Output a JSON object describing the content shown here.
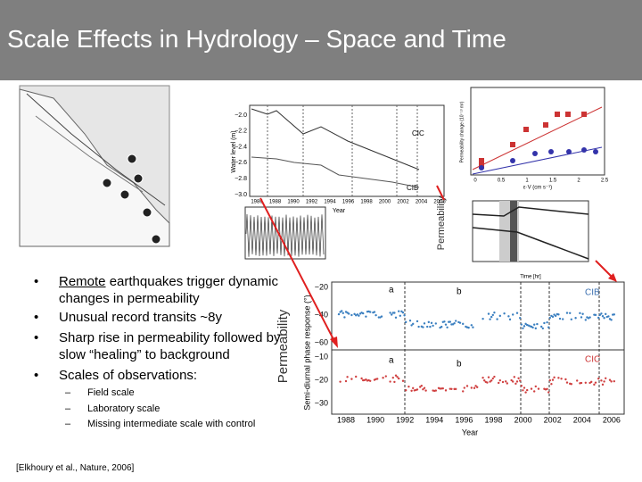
{
  "header": {
    "title": "Scale Effects in Hydrology – Space and Time"
  },
  "bullets": [
    {
      "lead": "Remote",
      "text": " earthquakes trigger dynamic changes in permeability"
    },
    {
      "text": "Unusual record transits ~8y"
    },
    {
      "text": "Sharp rise in permeability followed by slow “healing” to background"
    },
    {
      "text": "Scales of observations:",
      "subitems": [
        "Field scale",
        "Laboratory scale",
        "Missing intermediate scale with control"
      ]
    }
  ],
  "citation": "[Elkhoury et al., Nature, 2006]",
  "figure_labels": {
    "permeability_left": "Permeability",
    "permeability_top": "Permeability"
  },
  "water_level_plot": {
    "ylabel": "Water level (m)",
    "xlabel": "Year",
    "yticks": [
      "−2.0",
      "−2.2",
      "−2.4",
      "−2.6",
      "−2.8",
      "−3.0"
    ],
    "xticks": [
      "1986",
      "1988",
      "1990",
      "1992",
      "1994",
      "1996",
      "1998",
      "2000",
      "2002",
      "2004",
      "2006"
    ],
    "wells": [
      "CIC",
      "CIB"
    ]
  },
  "scatter_plot": {
    "ylabel": "Permeability change (10⁻¹³ m²)",
    "xlabel": "ε·V (cm s⁻¹)",
    "xticks": [
      "0",
      "0.5",
      "1",
      "1.5",
      "2",
      "2.5"
    ]
  },
  "hydraulic_plot": {
    "xlabel": "Time [hr]"
  },
  "phase_plot": {
    "ylabel": "Semi-diurnal phase response (°)",
    "xlabel": "Year",
    "yticks_top": [
      "−20",
      "−40",
      "−60"
    ],
    "yticks_bottom": [
      "−10",
      "−20",
      "−30"
    ],
    "xticks": [
      "1988",
      "1990",
      "1992",
      "1994",
      "1996",
      "1998",
      "2000",
      "2002",
      "2004",
      "2006"
    ],
    "wells": [
      "CIB",
      "CIC"
    ],
    "panel_letters": [
      "a",
      "b",
      "a",
      "b"
    ]
  }
}
